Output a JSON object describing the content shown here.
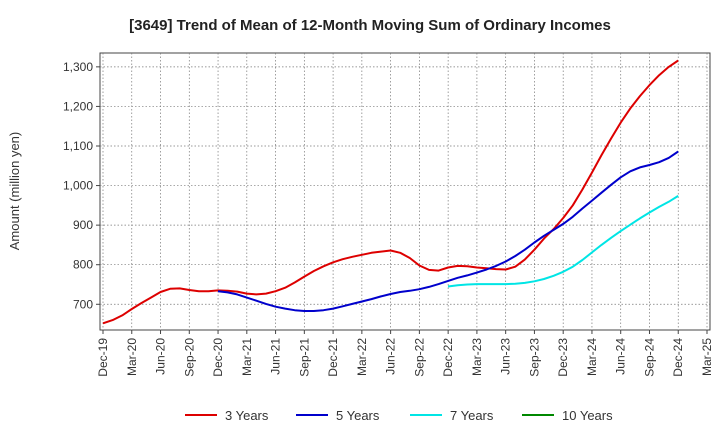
{
  "chart_data": {
    "type": "line",
    "title": "[3649]  Trend of Mean of 12-Month Moving Sum of Ordinary Incomes",
    "xlabel": "",
    "ylabel": "Amount (million yen)",
    "ylim": [
      635,
      1335
    ],
    "yticks": [
      700,
      800,
      900,
      1000,
      1100,
      1200,
      1300
    ],
    "ytick_labels": [
      "700",
      "800",
      "900",
      "1,000",
      "1,100",
      "1,200",
      "1,300"
    ],
    "xtick_labels": [
      "Dec-19",
      "Mar-20",
      "Jun-20",
      "Sep-20",
      "Dec-20",
      "Mar-21",
      "Jun-21",
      "Sep-21",
      "Dec-21",
      "Mar-22",
      "Jun-22",
      "Sep-22",
      "Dec-22",
      "Mar-23",
      "Jun-23",
      "Sep-23",
      "Dec-23",
      "Mar-24",
      "Jun-24",
      "Sep-24",
      "Dec-24",
      "Mar-25"
    ],
    "grid": true,
    "legend_position": "bottom",
    "series": [
      {
        "name": "3 Years",
        "color": "#dd0000",
        "start_month_index": 0,
        "values": [
          652,
          660,
          672,
          688,
          703,
          717,
          731,
          739,
          740,
          736,
          733,
          733,
          735,
          734,
          732,
          727,
          725,
          727,
          733,
          742,
          755,
          770,
          784,
          796,
          806,
          814,
          820,
          825,
          830,
          833,
          836,
          830,
          817,
          798,
          787,
          785,
          793,
          797,
          796,
          793,
          791,
          789,
          788,
          795,
          813,
          838,
          866,
          890,
          918,
          950,
          990,
          1033,
          1077,
          1119,
          1159,
          1195,
          1226,
          1254,
          1279,
          1300,
          1316
        ]
      },
      {
        "name": "5 Years",
        "color": "#0000cc",
        "start_month_index": 12,
        "values": [
          733,
          730,
          725,
          717,
          709,
          701,
          694,
          689,
          685,
          683,
          683,
          685,
          689,
          695,
          701,
          707,
          713,
          720,
          726,
          731,
          734,
          738,
          744,
          751,
          759,
          767,
          773,
          780,
          788,
          797,
          808,
          822,
          838,
          856,
          873,
          888,
          903,
          921,
          942,
          962,
          982,
          1002,
          1021,
          1036,
          1046,
          1052,
          1059,
          1070,
          1086
        ]
      },
      {
        "name": "7 Years",
        "color": "#00e5e5",
        "start_month_index": 36,
        "values": [
          745,
          748,
          750,
          751,
          751,
          751,
          751,
          752,
          754,
          758,
          764,
          772,
          782,
          795,
          812,
          831,
          850,
          868,
          885,
          901,
          917,
          932,
          946,
          959,
          974
        ]
      },
      {
        "name": "10 Years",
        "color": "#008800",
        "start_month_index": 0,
        "values": []
      }
    ]
  }
}
